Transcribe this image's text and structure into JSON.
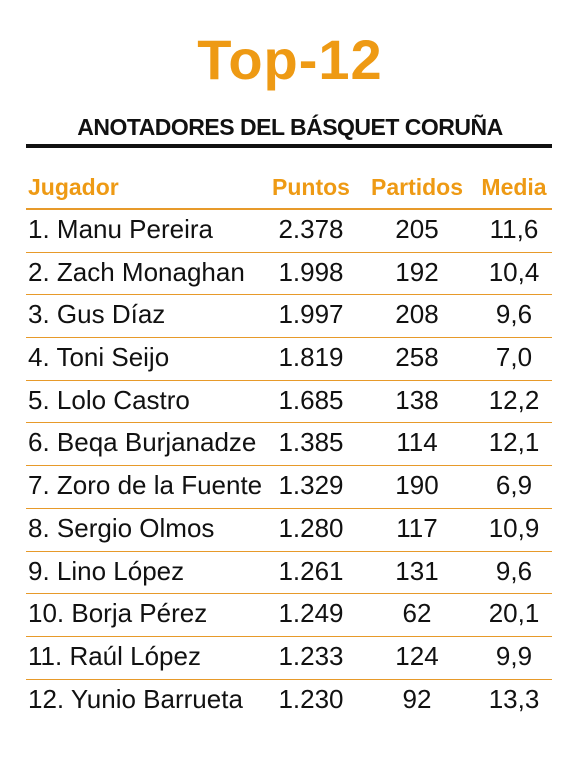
{
  "title": "Top-12",
  "subtitle": "ANOTADORES DEL BÁSQUET CORUÑA",
  "colors": {
    "accent": "#ee9a14",
    "text": "#111111",
    "rule": "#111111",
    "separator": "#e79a2a"
  },
  "chart_data": {
    "type": "table",
    "title": "Top-12",
    "subtitle": "ANOTADORES DEL BÁSQUET CORUÑA",
    "columns": [
      "Jugador",
      "Puntos",
      "Partidos",
      "Media"
    ],
    "rows": [
      [
        "1. Manu Pereira",
        "2.378",
        "205",
        "11,6"
      ],
      [
        "2. Zach Monaghan",
        "1.998",
        "192",
        "10,4"
      ],
      [
        "3. Gus Díaz",
        "1.997",
        "208",
        "9,6"
      ],
      [
        "4. Toni Seijo",
        "1.819",
        "258",
        "7,0"
      ],
      [
        "5. Lolo Castro",
        "1.685",
        "138",
        "12,2"
      ],
      [
        "6. Beqa Burjanadze",
        "1.385",
        "114",
        "12,1"
      ],
      [
        "7. Zoro de la Fuente",
        "1.329",
        "190",
        "6,9"
      ],
      [
        "8. Sergio Olmos",
        "1.280",
        "117",
        "10,9"
      ],
      [
        "9. Lino López",
        "1.261",
        "131",
        "9,6"
      ],
      [
        "10. Borja Pérez",
        "1.249",
        "62",
        "20,1"
      ],
      [
        "11. Raúl López",
        "1.233",
        "124",
        "9,9"
      ],
      [
        "12. Yunio Barrueta",
        "1.230",
        "92",
        "13,3"
      ]
    ]
  }
}
